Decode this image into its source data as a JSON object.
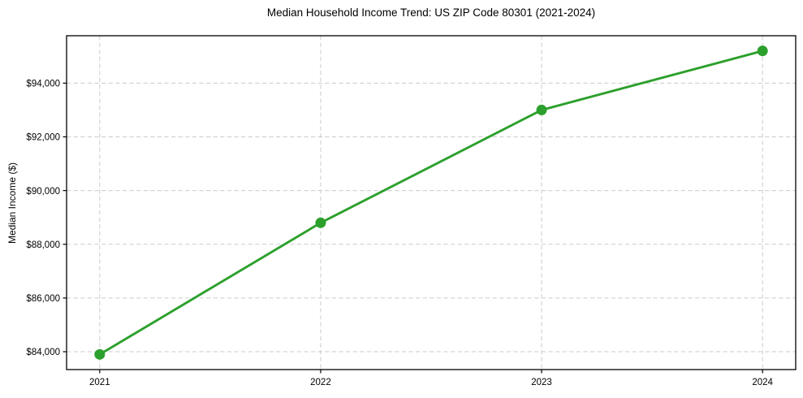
{
  "figure": {
    "background_color": "#ffffff",
    "text_color": "#000000",
    "grid_color": "#cccccc"
  },
  "chart_data": {
    "type": "line",
    "title": "Median Household Income Trend: US ZIP Code 80301 (2021-2024)",
    "xlabel": "",
    "ylabel": "Median Income ($)",
    "x": [
      2021,
      2022,
      2023,
      2024
    ],
    "categories": [
      "2021",
      "2022",
      "2023",
      "2024"
    ],
    "values": [
      83900,
      88800,
      93000,
      95200
    ],
    "xlim": [
      2020.85,
      2024.15
    ],
    "ylim": [
      83335,
      95765
    ],
    "xticks": [
      {
        "value": 2021,
        "label": "2021"
      },
      {
        "value": 2022,
        "label": "2022"
      },
      {
        "value": 2023,
        "label": "2023"
      },
      {
        "value": 2024,
        "label": "2024"
      }
    ],
    "yticks": [
      {
        "value": 84000,
        "label": "$84,000"
      },
      {
        "value": 86000,
        "label": "$86,000"
      },
      {
        "value": 88000,
        "label": "$88,000"
      },
      {
        "value": 90000,
        "label": "$90,000"
      },
      {
        "value": 92000,
        "label": "$92,000"
      },
      {
        "value": 94000,
        "label": "$94,000"
      }
    ],
    "grid": true,
    "grid_style": "dashed",
    "line_color": "#2ca02c",
    "marker": "circle",
    "marker_color": "#2ca02c",
    "legend_position": "none"
  }
}
